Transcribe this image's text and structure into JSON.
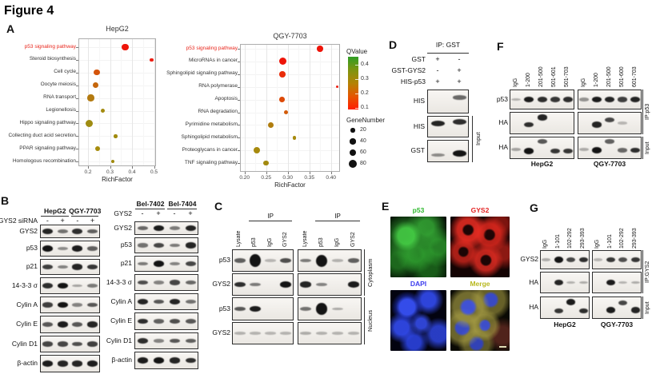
{
  "figure_title": "Figure 4",
  "accent_red": "#e8261c",
  "chart_data": [
    {
      "type": "scatter",
      "title": "HepG2",
      "xlabel": "RichFactor",
      "ylabel": "",
      "xlim": [
        0.16,
        0.51
      ],
      "xticks": [
        "0.2",
        "0.3",
        "0.4",
        "0.5"
      ],
      "grid": true,
      "legend_position": "right",
      "size_encoding": "GeneNumber",
      "color_encoding": "QValue",
      "highlight_category": "p53 signaling pathway",
      "highlight_color": "#e8261c",
      "points": [
        {
          "category": "p53 signaling pathway",
          "richfactor": 0.37,
          "gene_number": 55,
          "color": "#ee1409"
        },
        {
          "category": "Steroid biosynthesis",
          "richfactor": 0.49,
          "gene_number": 16,
          "color": "#ee1e12"
        },
        {
          "category": "Cell cycle",
          "richfactor": 0.24,
          "gene_number": 38,
          "color": "#d4540a"
        },
        {
          "category": "Oocyte meiosis",
          "richfactor": 0.235,
          "gene_number": 36,
          "color": "#c5660c"
        },
        {
          "category": "RNA transport",
          "richfactor": 0.212,
          "gene_number": 55,
          "color": "#b37a10"
        },
        {
          "category": "Legionellosis",
          "richfactor": 0.267,
          "gene_number": 20,
          "color": "#a48b10"
        },
        {
          "category": "Hippo signaling pathway",
          "richfactor": 0.205,
          "gene_number": 62,
          "color": "#9f8c12"
        },
        {
          "category": "Collecting duct acid secretion",
          "richfactor": 0.325,
          "gene_number": 15,
          "color": "#a08a0e"
        },
        {
          "category": "PPAR signaling pathway",
          "richfactor": 0.243,
          "gene_number": 30,
          "color": "#a68c0c"
        },
        {
          "category": "Homologous recombination",
          "richfactor": 0.313,
          "gene_number": 16,
          "color": "#a08a0e"
        }
      ]
    },
    {
      "type": "scatter",
      "title": "QGY-7703",
      "xlabel": "RichFactor",
      "ylabel": "",
      "xlim": [
        0.19,
        0.42
      ],
      "xticks": [
        "0.20",
        "0.25",
        "0.30",
        "0.35",
        "0.40"
      ],
      "grid": true,
      "legend_position": "right",
      "size_encoding": "GeneNumber",
      "color_encoding": "QValue",
      "highlight_category": "p53 signaling pathway",
      "highlight_color": "#e8261c",
      "points": [
        {
          "category": "p53 signaling pathway",
          "richfactor": 0.375,
          "gene_number": 42,
          "color": "#ee1409"
        },
        {
          "category": "MicroRNAs in cancer",
          "richfactor": 0.288,
          "gene_number": 62,
          "color": "#ee1409"
        },
        {
          "category": "Sphingolipid signaling pathway",
          "richfactor": 0.288,
          "gene_number": 44,
          "color": "#ea2c0a"
        },
        {
          "category": "RNA polymerase",
          "richfactor": 0.414,
          "gene_number": 7,
          "color": "#ee1e12"
        },
        {
          "category": "Apoptosis",
          "richfactor": 0.287,
          "gene_number": 34,
          "color": "#dd4a08"
        },
        {
          "category": "RNA degradation",
          "richfactor": 0.296,
          "gene_number": 24,
          "color": "#d25b0a"
        },
        {
          "category": "Pyrimidine metabolism",
          "richfactor": 0.26,
          "gene_number": 36,
          "color": "#b07d0e"
        },
        {
          "category": "Sphingolipid metabolism",
          "richfactor": 0.315,
          "gene_number": 15,
          "color": "#a78a0e"
        },
        {
          "category": "Proteoglycans in cancer",
          "richfactor": 0.228,
          "gene_number": 56,
          "color": "#a78a0e"
        },
        {
          "category": "TNF signaling pathway",
          "richfactor": 0.249,
          "gene_number": 34,
          "color": "#a2890f"
        }
      ]
    }
  ],
  "panels": {
    "A": {
      "label": "A",
      "legend": {
        "qvalue_title": "QValue",
        "qvalue_ticks": [
          "0.4",
          "0.3",
          "0.2",
          "0.1"
        ],
        "gradient": [
          "#2f9e26",
          "#7e9410",
          "#b38305",
          "#e55501",
          "#ff1e00"
        ],
        "gene_title": "GeneNumber",
        "gene_sizes": [
          20,
          40,
          60,
          80
        ]
      }
    },
    "B": {
      "label": "B",
      "groups": [
        {
          "cell_lines": [
            "HepG2",
            "QGY-7703"
          ],
          "treatment_label": "GYS2 siRNA",
          "treatment_values": [
            "-",
            "+",
            "-",
            "+"
          ],
          "rows": [
            {
              "label": "GYS2",
              "bands": [
                0.9,
                0.45,
                0.85,
                0.55
              ]
            },
            {
              "label": "p53",
              "bands": [
                1.0,
                0.3,
                0.95,
                0.55
              ]
            },
            {
              "label": "p21",
              "bands": [
                0.75,
                0.35,
                0.9,
                0.8
              ]
            },
            {
              "label": "14-3-3 σ",
              "bands": [
                0.85,
                1.0,
                0.15,
                0.4
              ]
            },
            {
              "label": "Cylin A",
              "bands": [
                0.75,
                1.0,
                0.35,
                0.6
              ]
            },
            {
              "label": "Cylin E",
              "bands": [
                0.6,
                0.95,
                0.6,
                0.9
              ]
            },
            {
              "label": "Cylin D1",
              "bands": [
                0.7,
                0.7,
                0.65,
                0.75
              ]
            },
            {
              "label": "β-actin",
              "bands": [
                0.95,
                0.9,
                0.9,
                0.95
              ]
            }
          ]
        },
        {
          "cell_lines": [
            "Bel-7402",
            "Bel-7404"
          ],
          "treatment_label": "GYS2",
          "treatment_values": [
            "-",
            "+",
            "-",
            "+"
          ],
          "rows": [
            {
              "label": "GYS2",
              "bands": [
                0.5,
                0.95,
                0.4,
                0.9
              ]
            },
            {
              "label": "p53",
              "bands": [
                0.45,
                0.7,
                0.4,
                0.9
              ]
            },
            {
              "label": "p21",
              "bands": [
                0.4,
                1.0,
                0.35,
                0.7
              ]
            },
            {
              "label": "14-3-3 σ",
              "bands": [
                0.65,
                0.35,
                0.7,
                0.5
              ]
            },
            {
              "label": "Cylin A",
              "bands": [
                0.9,
                0.6,
                0.9,
                0.45
              ]
            },
            {
              "label": "Cylin E",
              "bands": [
                0.85,
                0.55,
                0.65,
                0.6
              ]
            },
            {
              "label": "Cylin D1",
              "bands": [
                0.85,
                0.35,
                0.6,
                0.55
              ]
            },
            {
              "label": "β-actin",
              "bands": [
                0.95,
                1.0,
                0.9,
                0.85
              ]
            }
          ]
        }
      ]
    },
    "C": {
      "label": "C",
      "ip_label": "IP",
      "lanes": [
        "Lysate",
        "p53",
        "IgG",
        "GYS2"
      ],
      "row_labels": [
        "p53",
        "GYS2",
        "p53",
        "GYS2"
      ],
      "compartments": [
        "Cytoplasm",
        "Nucleus"
      ],
      "groups": [
        {
          "rows": [
            {
              "bands": [
                0.55,
                1.0,
                0.05,
                0.65
              ],
              "hm": [
                1,
                2.2,
                1,
                1
              ]
            },
            {
              "bands": [
                0.85,
                0.4,
                0.02,
                1.0
              ]
            },
            {
              "bands": [
                0.6,
                0.95,
                0.02,
                0.02
              ]
            },
            {
              "bands": [
                0.08,
                0.06,
                0.05,
                0.06
              ]
            }
          ]
        },
        {
          "rows": [
            {
              "bands": [
                0.4,
                1.0,
                0.08,
                0.55
              ],
              "hm": [
                1,
                2.0,
                1,
                1
              ]
            },
            {
              "bands": [
                0.9,
                0.35,
                0.02,
                0.95
              ]
            },
            {
              "bands": [
                0.45,
                1.0,
                0.12,
                0.02
              ],
              "hm": [
                1,
                1.9,
                1,
                1
              ]
            },
            {
              "bands": [
                0.1,
                0.08,
                0.06,
                0.06
              ]
            }
          ]
        }
      ]
    },
    "D": {
      "label": "D",
      "ip_header": "IP: GST",
      "conditions": [
        {
          "label": "GST",
          "values": [
            "+",
            "-"
          ]
        },
        {
          "label": "GST-GYS2",
          "values": [
            "-",
            "+"
          ]
        },
        {
          "label": "HIS-p53",
          "values": [
            "+",
            "+"
          ]
        }
      ],
      "rows": [
        {
          "label": "HIS",
          "bands": [
            0,
            0.5
          ],
          "dy": [
            0,
            -5
          ]
        },
        {
          "label": "HIS",
          "bands": [
            0.9,
            0.85
          ],
          "dy": [
            -4,
            -6
          ]
        },
        {
          "label": "GST",
          "bands": [
            0.3,
            1.0
          ],
          "dy": [
            5,
            3
          ]
        }
      ],
      "input_label": "Input"
    },
    "E": {
      "label": "E",
      "images": [
        {
          "label": "p53",
          "label_color": "#2db82d",
          "channel": "green"
        },
        {
          "label": "GYS2",
          "label_color": "#e32222",
          "channel": "red"
        },
        {
          "label": "DAPI",
          "label_color": "#3d3dee",
          "channel": "blue"
        },
        {
          "label": "Merge",
          "label_color": "#b8b820",
          "channel": "merge"
        }
      ]
    },
    "F": {
      "label": "F",
      "row_labels": [
        "p53",
        "HA",
        "HA"
      ],
      "side_labels": [
        "IP:p53",
        "Input"
      ],
      "groups": [
        {
          "cell_line": "HepG2",
          "lanes": [
            "IgG",
            "1-200",
            "201-500",
            "501-601",
            "501-703"
          ],
          "rows": [
            {
              "bands": [
                0.08,
                0.95,
                0.85,
                0.8,
                0.85
              ]
            },
            {
              "bands": [
                0,
                0.85,
                0.9,
                0,
                0
              ],
              "dy": [
                0,
                2,
                -7,
                0,
                0
              ]
            },
            {
              "bands": [
                0.15,
                1.0,
                0.6,
                0.8,
                0.8
              ],
              "dy": [
                2,
                4,
                -8,
                4,
                4
              ]
            }
          ]
        },
        {
          "cell_line": "QGY-7703",
          "lanes": [
            "IgG",
            "1-200",
            "201-500",
            "501-600",
            "601-703"
          ],
          "rows": [
            {
              "bands": [
                0.25,
                0.95,
                0.9,
                0.75,
                0.9
              ]
            },
            {
              "bands": [
                0,
                0.9,
                0.7,
                0.05,
                0
              ],
              "dy": [
                0,
                2,
                -4,
                0,
                0
              ]
            },
            {
              "bands": [
                0.1,
                1.0,
                0.55,
                0.5,
                0.85
              ],
              "dy": [
                2,
                3,
                -8,
                3,
                3
              ]
            }
          ]
        }
      ]
    },
    "G": {
      "label": "G",
      "row_labels": [
        "GYS2",
        "HA",
        "HA"
      ],
      "side_labels": [
        "IP:GYS2",
        "Input"
      ],
      "groups": [
        {
          "cell_line": "HepG2",
          "lanes": [
            "IgG",
            "1-101",
            "102-292",
            "293-393"
          ],
          "rows": [
            {
              "bands": [
                0.1,
                1.0,
                0.7,
                0.85
              ]
            },
            {
              "bands": [
                0,
                0.9,
                0.08,
                0.1
              ]
            },
            {
              "bands": [
                0,
                0.8,
                0.95,
                0.85
              ],
              "dy": [
                0,
                4,
                -7,
                4
              ]
            }
          ]
        },
        {
          "cell_line": "QGY-7703",
          "lanes": [
            "IgG",
            "1-101",
            "102-292",
            "293-393"
          ],
          "rows": [
            {
              "bands": [
                0.05,
                0.8,
                0.65,
                0.8
              ]
            },
            {
              "bands": [
                0,
                0.95,
                0.06,
                0.1
              ]
            },
            {
              "bands": [
                0,
                0.95,
                0.7,
                0.9
              ],
              "dy": [
                0,
                3,
                -6,
                3
              ]
            }
          ]
        }
      ]
    }
  }
}
